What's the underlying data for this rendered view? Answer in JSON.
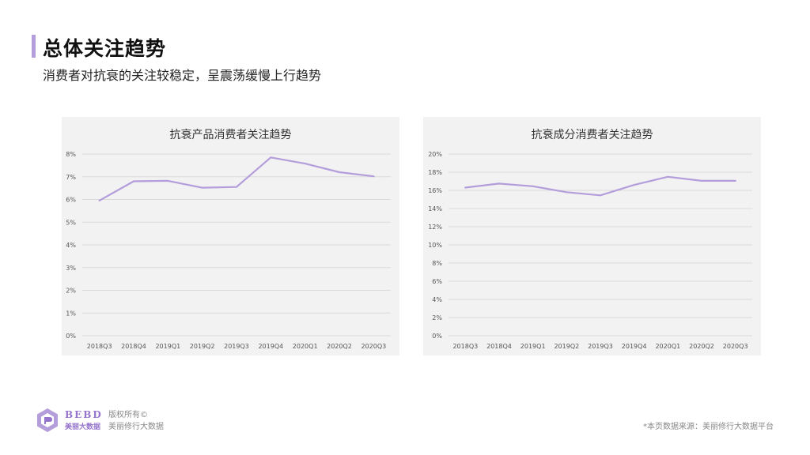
{
  "header": {
    "title": "总体关注趋势",
    "subtitle": "消费者对抗衰的关注较稳定，呈震荡缓慢上行趋势"
  },
  "chart_data": [
    {
      "type": "line",
      "title": "抗衰产品消费者关注趋势",
      "categories": [
        "2018Q3",
        "2018Q4",
        "2019Q1",
        "2019Q2",
        "2019Q3",
        "2019Q4",
        "2020Q1",
        "2020Q2",
        "2020Q3"
      ],
      "series": [
        {
          "values": [
            5.95,
            6.8,
            6.82,
            6.52,
            6.55,
            7.85,
            7.58,
            7.2,
            7.02
          ]
        }
      ],
      "ylim": [
        0,
        8
      ],
      "yticks": [
        0,
        1,
        2,
        3,
        4,
        5,
        6,
        7,
        8
      ],
      "ytick_labels": [
        "0%",
        "1%",
        "2%",
        "3%",
        "4%",
        "5%",
        "6%",
        "7%",
        "8%"
      ],
      "grid": true,
      "color": "#b39ddb"
    },
    {
      "type": "line",
      "title": "抗衰成分消费者关注趋势",
      "categories": [
        "2018Q3",
        "2018Q4",
        "2019Q1",
        "2019Q2",
        "2019Q3",
        "2019Q4",
        "2020Q1",
        "2020Q2",
        "2020Q3"
      ],
      "series": [
        {
          "values": [
            16.3,
            16.75,
            16.45,
            15.8,
            15.45,
            16.6,
            17.5,
            17.05,
            17.05
          ]
        }
      ],
      "ylim": [
        0,
        20
      ],
      "yticks": [
        0,
        2,
        4,
        6,
        8,
        10,
        12,
        14,
        16,
        18,
        20
      ],
      "ytick_labels": [
        "0%",
        "2%",
        "4%",
        "6%",
        "8%",
        "10%",
        "12%",
        "14%",
        "16%",
        "18%",
        "20%"
      ],
      "grid": true,
      "color": "#b39ddb"
    }
  ],
  "footer": {
    "logo_en": "BEBD",
    "logo_cn": "美丽大数据",
    "copyright_line1": "版权所有©",
    "copyright_line2": "美丽修行大数据",
    "source_note": "*本页数据来源：美丽修行大数据平台"
  },
  "icons": {
    "logo": "bebd-logo-icon"
  },
  "colors": {
    "accent": "#b39ddb",
    "logo": "#9575cd"
  }
}
